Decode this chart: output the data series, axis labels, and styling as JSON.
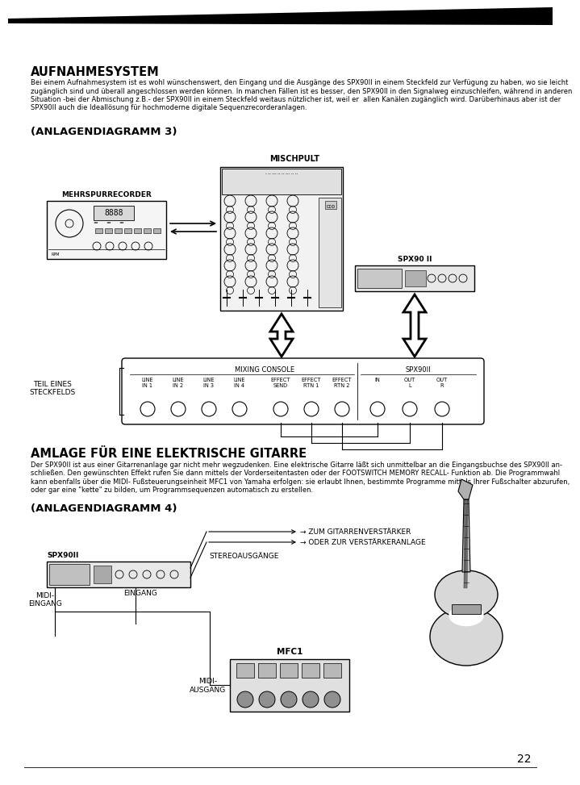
{
  "page_bg": "#ffffff",
  "page_num": "22",
  "title1": "AUFNAHMESYSTEM",
  "body1_lines": [
    "Bei einem Aufnahmesystem ist es wohl wünschenswert, den Eingang und die Ausgänge des SPX90II in einem Steckfeld zur Verfügung zu haben, wo sie leicht",
    "zugänglich sind und überall angeschlossen werden können. In manchen Fällen ist es besser, den SPX90II in den Signalweg einzuschleifen, während in anderen",
    "Situation -bei der Abmischung z.B.- der SPX90II in einem Steckfeld weitaus nützlicher ist, weil er  allen Kanälen zugänglich wird. Darüberhinaus aber ist der",
    "SPX90II auch die Ideallösung für hochmoderne digitale Sequenzrecorderanlagen."
  ],
  "diag3_title": "(ANLAGENDIAGRAMM 3)",
  "label_mischpult": "MISCHPULT",
  "label_mehrspurrecorder": "MEHRSPURRECORDER",
  "label_spx90ii_1": "SPX90 II",
  "label_mixing_console": "MIXING CONSOLE",
  "label_spx90ii_2": "SPX90II",
  "label_teil": "TEIL EINES\nSTECKFELDS",
  "label_line_in1": "LINE\nIN 1",
  "label_line_in2": "LINE\nIN 2",
  "label_line_in3": "LINE\nIN 3",
  "label_line_in4": "LINE\nIN 4",
  "label_effect_send": "EFFECT\nSEND",
  "label_effect_rtn1": "EFFECT\nRTN 1",
  "label_effect_rtn2": "EFFECT\nRTN 2",
  "label_in": "IN",
  "label_out_l": "OUT\nL",
  "label_out_r": "OUT\nR",
  "title2": "AMLAGE FÜR EINE ELEKTRISCHE GITARRE",
  "body2_lines": [
    "Der SPX90II ist aus einer Gitarrenanlage gar nicht mehr wegzudenken. Eine elektrische Gitarre läßt sich unmittelbar an die Eingangsbuchse des SPX90II an-",
    "schließen. Den gewünschten Effekt rufen Sie dann mittels der Vorderseitentasten oder der FOOTSWITCH MEMORY RECALL- Funktion ab. Die Programmwahl",
    "kann ebenfalls über die MIDI- Fußsteuerungseinheit MFC1 von Yamaha erfolgen: sie erlaubt Ihnen, bestimmte Programme mittels Ihrer Fußschalter abzurufen,",
    "oder gar eine \"kette\" zu bilden, um Programmsequenzen automatisch zu erstellen."
  ],
  "diag4_title": "(ANLAGENDIAGRAMM 4)",
  "label_zum_gitarren": "→ ZUM GITARRENVERSTÄRKER",
  "label_oder_zur": "→ ODER ZUR VERSTÄRKERANLAGE",
  "label_stereoausgange": "STEREOAUSGÄNGE",
  "label_spx90ii_3": "SPX90II",
  "label_eingang": "EINGANG",
  "label_midi_eingang": "MIDI-\nEINGANG",
  "label_mfc1": "MFC1",
  "label_midi_ausgang": "MIDI-\nAUSGANG"
}
